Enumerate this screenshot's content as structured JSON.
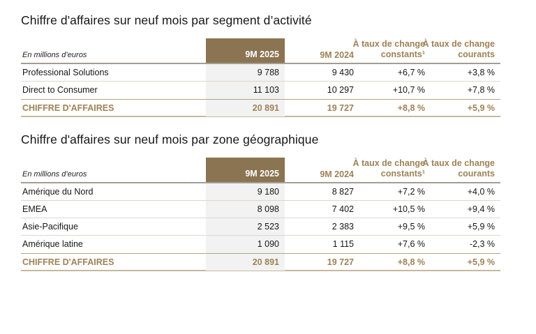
{
  "colors": {
    "header_block": "#8B7451",
    "brown_text": "#9E8257",
    "shaded_column": "#F2F2F2",
    "row_line": "#DDD7CC",
    "total_line": "#B3A284",
    "header_line": "#A39D92"
  },
  "rate_header": {
    "line1": "À taux de change",
    "constants": "constants¹",
    "courants": "courants"
  },
  "tables": [
    {
      "title": "Chiffre d'affaires sur neuf mois par segment d’activité",
      "unit_label": "En millions d’euros",
      "col_2025": "9M 2025",
      "col_2024": "9M 2024",
      "rows": [
        {
          "label": "Professional Solutions",
          "y2025": "9 788",
          "y2024": "9 430",
          "constant": "+6,7 %",
          "current": "+3,8 %"
        },
        {
          "label": "Direct to Consumer",
          "y2025": "11 103",
          "y2024": "10 297",
          "constant": "+10,7 %",
          "current": "+7,8 %"
        }
      ],
      "total": {
        "label": "CHIFFRE D'AFFAIRES",
        "y2025": "20 891",
        "y2024": "19 727",
        "constant": "+8,8 %",
        "current": "+5,9 %"
      }
    },
    {
      "title": "Chiffre d'affaires sur neuf mois par zone géographique",
      "unit_label": "En millions d’euros",
      "col_2025": "9M 2025",
      "col_2024": "9M 2024",
      "rows": [
        {
          "label": "Amérique du Nord",
          "y2025": "9 180",
          "y2024": "8 827",
          "constant": "+7,2 %",
          "current": "+4,0 %"
        },
        {
          "label": "EMEA",
          "y2025": "8 098",
          "y2024": "7 402",
          "constant": "+10,5 %",
          "current": "+9,4 %"
        },
        {
          "label": "Asie-Pacifique",
          "y2025": "2 523",
          "y2024": "2 383",
          "constant": "+9,5 %",
          "current": "+5,9 %"
        },
        {
          "label": "Amérique latine",
          "y2025": "1 090",
          "y2024": "1 115",
          "constant": "+7,6 %",
          "current": "-2,3 %"
        }
      ],
      "total": {
        "label": "CHIFFRE D'AFFAIRES",
        "y2025": "20 891",
        "y2024": "19 727",
        "constant": "+8,8 %",
        "current": "+5,9 %"
      }
    }
  ]
}
